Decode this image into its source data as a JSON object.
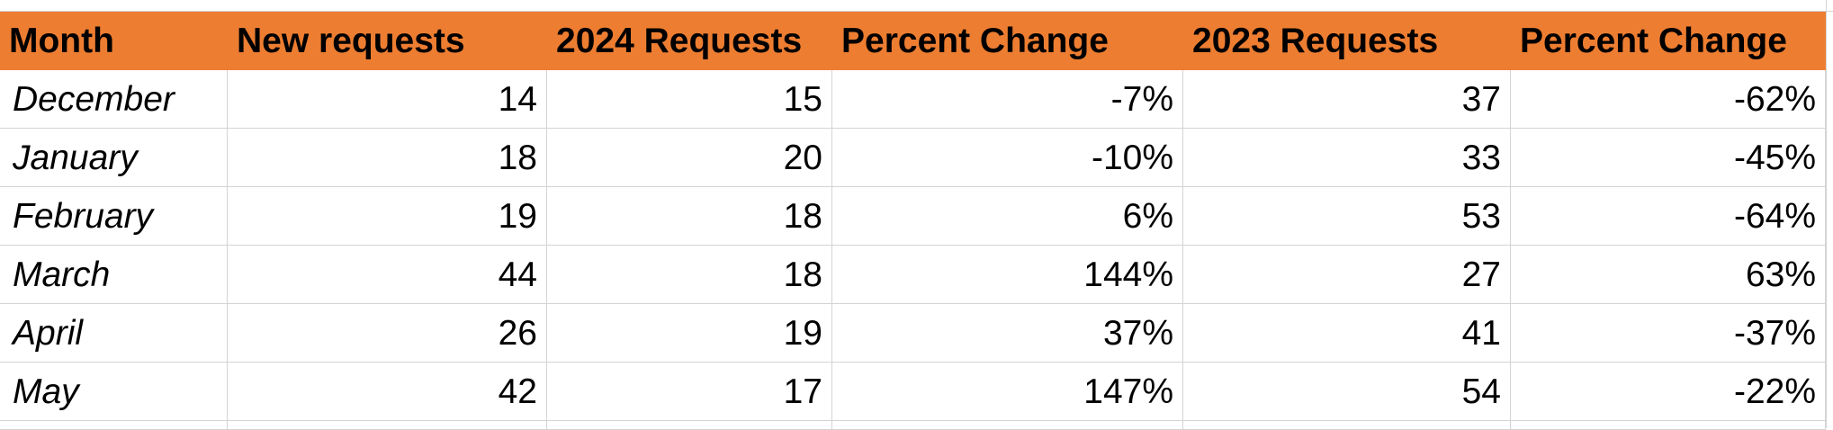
{
  "table": {
    "header": [
      "Month",
      "New requests",
      "2024 Requests",
      "Percent Change",
      "2023 Requests",
      "Percent Change"
    ],
    "rows": [
      [
        "December",
        14,
        15,
        "-7%",
        37,
        "-62%"
      ],
      [
        "January",
        18,
        20,
        "-10%",
        33,
        "-45%"
      ],
      [
        "February",
        19,
        18,
        "6%",
        53,
        "-64%"
      ],
      [
        "March",
        44,
        18,
        "144%",
        27,
        "63%"
      ],
      [
        "April",
        26,
        19,
        "37%",
        41,
        "-37%"
      ],
      [
        "May",
        42,
        17,
        "147%",
        54,
        "-22%"
      ]
    ]
  }
}
